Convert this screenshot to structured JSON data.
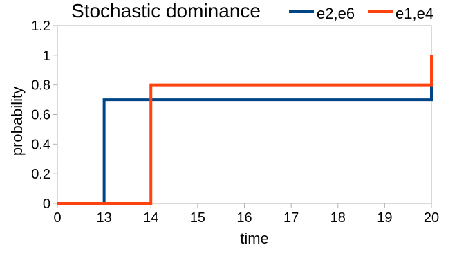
{
  "chart_data": {
    "type": "line",
    "step": true,
    "title": "Stochastic dominance",
    "xlabel": "time",
    "ylabel": "probability",
    "x_tick_labels": [
      "0",
      "13",
      "14",
      "15",
      "16",
      "17",
      "18",
      "19",
      "20"
    ],
    "y_tick_labels": [
      "0",
      "0.2",
      "0.4",
      "0.6",
      "0.8",
      "1",
      "1.2"
    ],
    "ylim": [
      0,
      1.2
    ],
    "grid": "none",
    "legend_position": "top-right",
    "series": [
      {
        "name": "e2,e6",
        "color": "#004586",
        "points": [
          [
            0,
            0
          ],
          [
            13,
            0
          ],
          [
            13,
            0.7
          ],
          [
            20,
            0.7
          ],
          [
            20,
            1
          ]
        ]
      },
      {
        "name": "e1,e4",
        "color": "#ff420e",
        "points": [
          [
            0,
            0
          ],
          [
            14,
            0
          ],
          [
            14,
            0.8
          ],
          [
            20,
            0.8
          ],
          [
            20,
            1
          ]
        ]
      }
    ]
  }
}
